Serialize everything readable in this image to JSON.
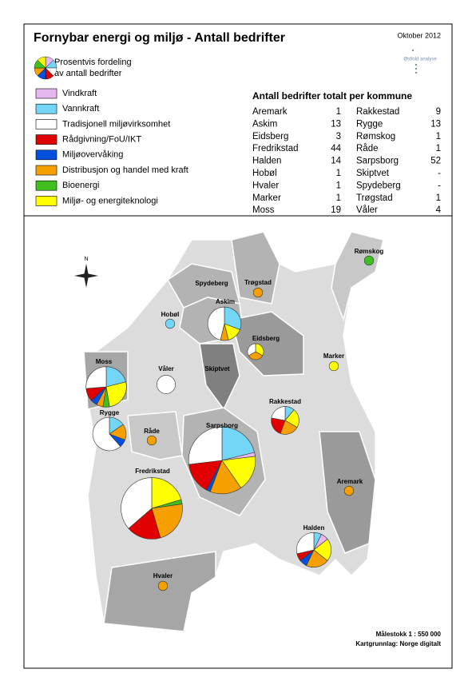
{
  "header": {
    "title": "Fornybar energi og miljø - Antall bedrifter",
    "date": "Oktober 2012",
    "logo": "Østfold analyse"
  },
  "legend": {
    "title_lines": [
      "Prosentvis fordeling",
      "av antall bedrifter"
    ],
    "items": [
      {
        "label": "Vindkraft",
        "color": "#e6b8f0"
      },
      {
        "label": "Vannkraft",
        "color": "#73d6f7"
      },
      {
        "label": "Tradisjonell miljøvirksomhet",
        "color": "#ffffff"
      },
      {
        "label": "Rådgivning/FoU/IKT",
        "color": "#e00000"
      },
      {
        "label": "Miljøovervåking",
        "color": "#0050e0"
      },
      {
        "label": "Distribusjon og handel med kraft",
        "color": "#f5a000"
      },
      {
        "label": "Bioenergi",
        "color": "#40c020"
      },
      {
        "label": "Miljø- og energiteknologi",
        "color": "#ffff00"
      }
    ]
  },
  "table": {
    "title": "Antall bedrifter totalt per kommune",
    "rows": [
      {
        "name": "Aremark",
        "total": "1",
        "shares": [
          0,
          0,
          0,
          0,
          0,
          1,
          0,
          0
        ]
      },
      {
        "name": "Askim",
        "total": "13",
        "shares": [
          0,
          4,
          6,
          0,
          0,
          1,
          0,
          2
        ]
      },
      {
        "name": "Eidsberg",
        "total": "3",
        "shares": [
          0,
          0,
          1,
          0,
          0,
          1,
          0,
          1
        ]
      },
      {
        "name": "Fredrikstad",
        "total": "44",
        "shares": [
          0,
          0,
          16,
          8,
          0,
          10,
          1,
          9
        ]
      },
      {
        "name": "Halden",
        "total": "14",
        "shares": [
          1,
          1,
          4,
          1,
          1,
          3,
          0,
          3
        ]
      },
      {
        "name": "Hobøl",
        "total": "1",
        "shares": [
          0,
          1,
          0,
          0,
          0,
          0,
          0,
          0
        ]
      },
      {
        "name": "Hvaler",
        "total": "1",
        "shares": [
          0,
          0,
          0,
          0,
          0,
          1,
          0,
          0
        ]
      },
      {
        "name": "Marker",
        "total": "1",
        "shares": [
          0,
          0,
          0,
          0,
          0,
          0,
          0,
          1
        ]
      },
      {
        "name": "Moss",
        "total": "19",
        "shares": [
          0,
          4,
          5,
          2,
          1,
          1,
          1,
          5
        ]
      },
      {
        "name": "Rakkestad",
        "total": "9",
        "shares": [
          0,
          1,
          2,
          2,
          0,
          2,
          0,
          2
        ]
      },
      {
        "name": "Rygge",
        "total": "13",
        "shares": [
          0,
          2,
          8,
          0,
          1,
          2,
          0,
          0
        ]
      },
      {
        "name": "Rømskog",
        "total": "1",
        "shares": [
          0,
          0,
          0,
          0,
          0,
          0,
          1,
          0
        ]
      },
      {
        "name": "Råde",
        "total": "1",
        "shares": [
          0,
          0,
          0,
          0,
          0,
          1,
          0,
          0
        ]
      },
      {
        "name": "Sarpsborg",
        "total": "52",
        "shares": [
          1,
          11,
          14,
          8,
          1,
          8,
          0,
          9
        ]
      },
      {
        "name": "Skiptvet",
        "total": "-",
        "shares": []
      },
      {
        "name": "Spydeberg",
        "total": "-",
        "shares": []
      },
      {
        "name": "Trøgstad",
        "total": "1",
        "shares": [
          0,
          0,
          0,
          0,
          0,
          1,
          0,
          0
        ]
      },
      {
        "name": "Våler",
        "total": "4",
        "shares": [
          0,
          0,
          4,
          0,
          0,
          0,
          0,
          0
        ]
      }
    ]
  },
  "compass_label": "N",
  "footer": {
    "scale": "Målestokk 1 : 550 000",
    "source": "Kartgrunnlag: Norge digitalt"
  }
}
